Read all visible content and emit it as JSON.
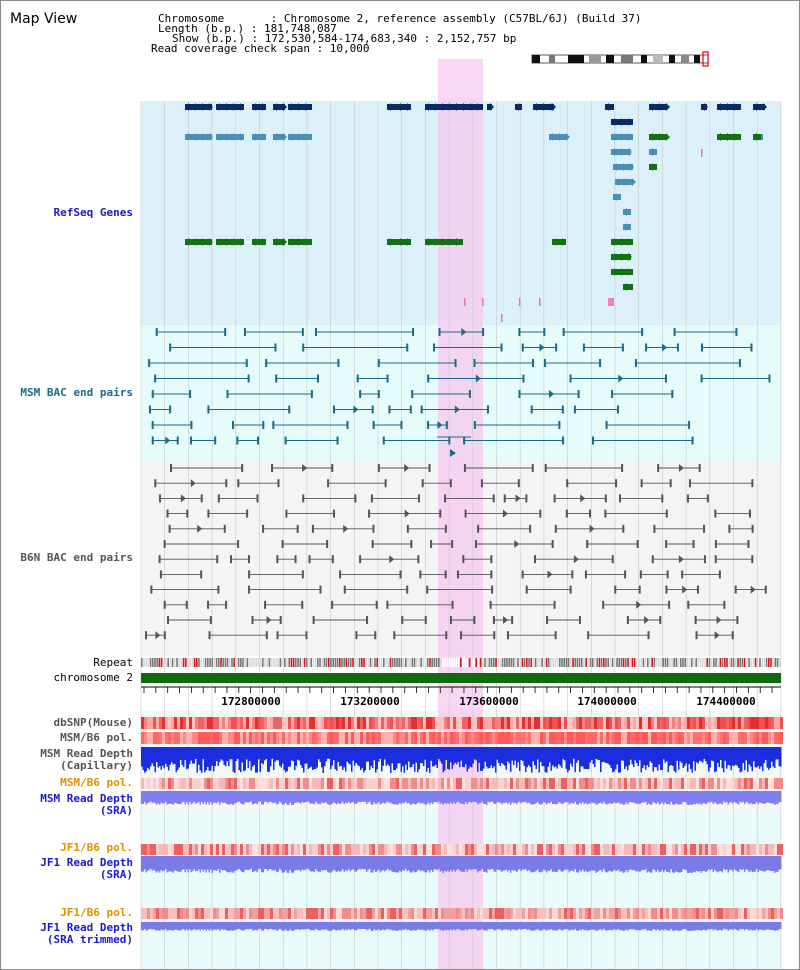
{
  "page_title": "Map View",
  "info": {
    "chromosome_line": "Chromosome       : Chromosome 2, reference assembly (C57BL/6J) (Build 37)",
    "length_line": "Length (b.p.) : 181,748,087",
    "show_line": "Show (b.p.) : 172,530,584-174,683,340 : 2,152,757 bp",
    "coverage_line": "Read coverage check span : 10,000"
  },
  "tracks": {
    "refseq": "RefSeq Genes",
    "msm_bac": "MSM BAC end pairs",
    "b6n_bac": "B6N BAC end pairs",
    "repeat": "Repeat",
    "chromosome": "chromosome 2",
    "dbsnp": "dbSNP(Mouse)",
    "msm_b6_pol_1": "MSM/B6 pol.",
    "msm_read_depth_cap_1": "MSM Read Depth",
    "msm_read_depth_cap_2": "(Capillary)",
    "msm_b6_pol_2": "MSM/B6 pol.",
    "msm_read_depth_sra_1": "MSM Read Depth",
    "msm_read_depth_sra_2": "(SRA)",
    "jf1_b6_pol_1": "JF1/B6 pol.",
    "jf1_read_depth_1": "JF1 Read Depth",
    "jf1_read_depth_2": "(SRA)",
    "jf1_b6_pol_2": "JF1/B6 pol.",
    "jf1_read_depth_trim_1": "JF1 Read Depth",
    "jf1_read_depth_trim_2": "(SRA trimmed)"
  },
  "axis": {
    "ticks": [
      "172800000",
      "173200000",
      "173600000",
      "174000000",
      "174400000"
    ]
  },
  "colors": {
    "gene_navy": "#0a2a66",
    "gene_teal": "#4a8fb5",
    "gene_green": "#127212",
    "msm_bac": "#1b6a86",
    "b6n_bac": "#555555",
    "label_blue": "#1a1acc",
    "label_orange": "#e09000",
    "highlight": "#f7c8ef"
  }
}
